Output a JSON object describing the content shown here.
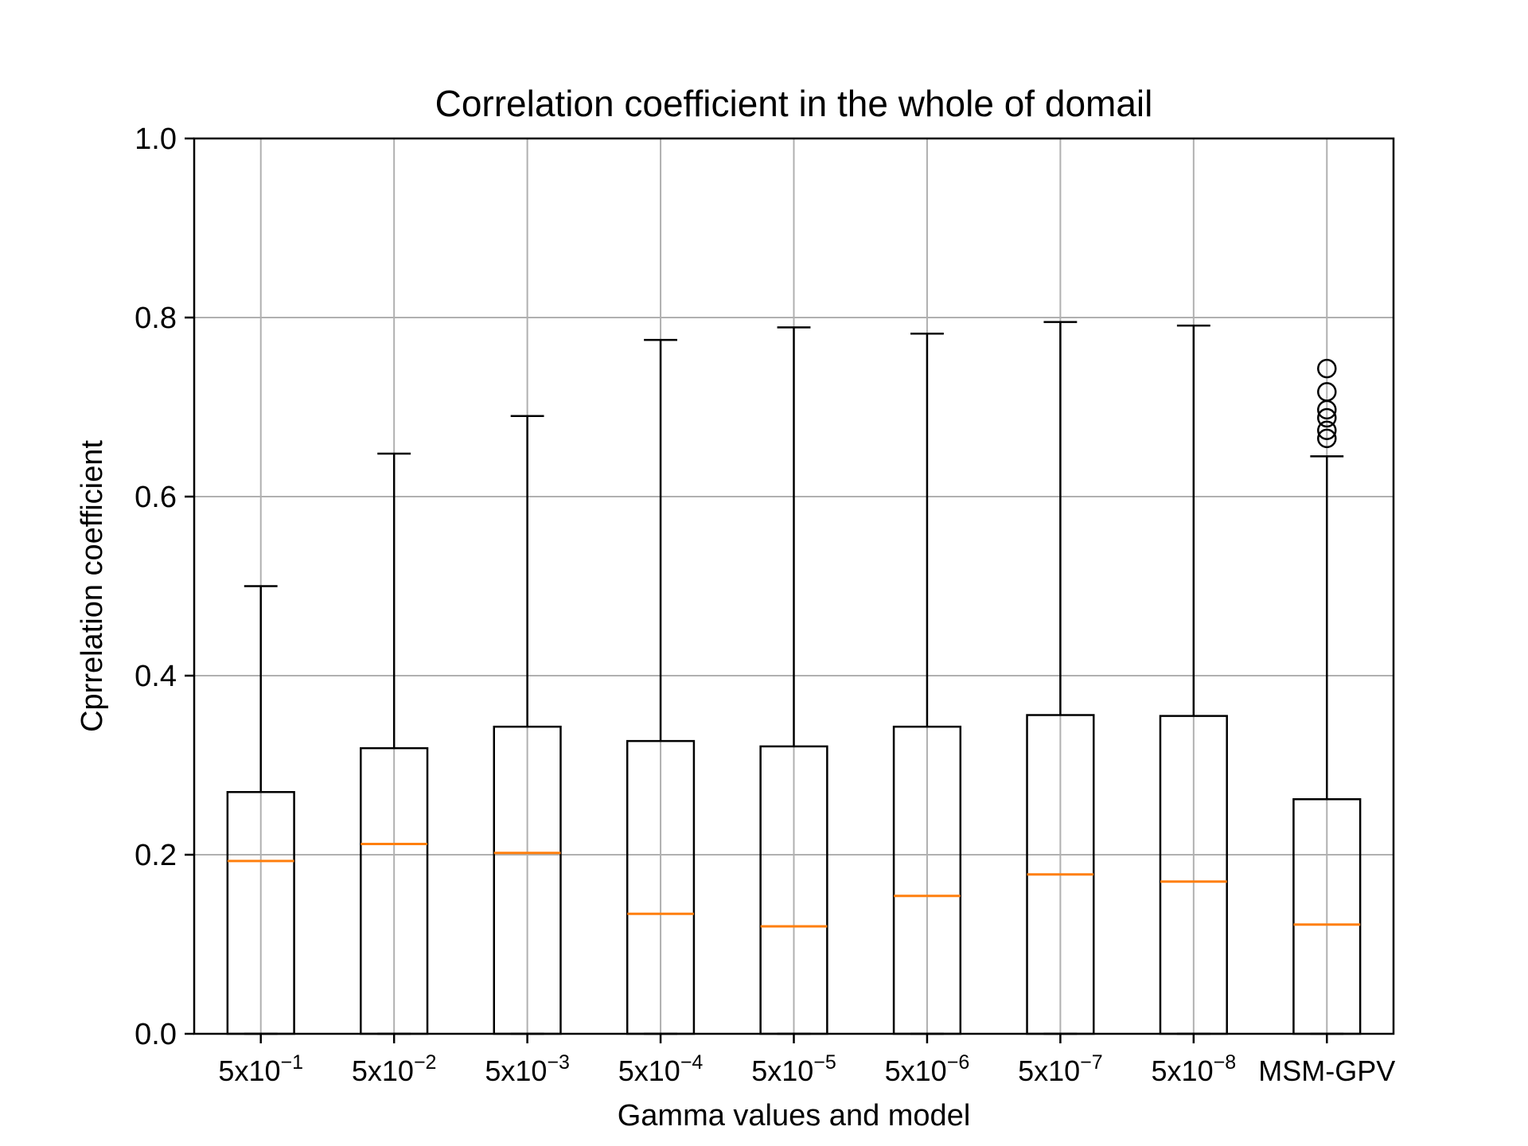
{
  "chart_data": {
    "type": "box",
    "title": "Correlation coefficient in the whole of domail",
    "xlabel": "Gamma values and model",
    "ylabel": "Cprrelation coefficient",
    "ylim": [
      0.0,
      1.0
    ],
    "yticks": [
      "0.0",
      "0.2",
      "0.4",
      "0.6",
      "0.8",
      "1.0"
    ],
    "grid": true,
    "colors": {
      "box": "#000000",
      "median": "#ff7f0e",
      "grid": "#b0b0b0"
    },
    "categories": [
      {
        "base": "5x10",
        "exp": "−1"
      },
      {
        "base": "5x10",
        "exp": "−2"
      },
      {
        "base": "5x10",
        "exp": "−3"
      },
      {
        "base": "5x10",
        "exp": "−4"
      },
      {
        "base": "5x10",
        "exp": "−5"
      },
      {
        "base": "5x10",
        "exp": "−6"
      },
      {
        "base": "5x10",
        "exp": "−7"
      },
      {
        "base": "5x10",
        "exp": "−8"
      },
      {
        "base": "MSM-GPV",
        "exp": ""
      }
    ],
    "boxes": [
      {
        "whisker_low": 0.0,
        "q1": 0.0,
        "median": 0.193,
        "q3": 0.27,
        "whisker_high": 0.5,
        "outliers": []
      },
      {
        "whisker_low": 0.0,
        "q1": 0.0,
        "median": 0.212,
        "q3": 0.319,
        "whisker_high": 0.648,
        "outliers": []
      },
      {
        "whisker_low": 0.0,
        "q1": 0.0,
        "median": 0.202,
        "q3": 0.343,
        "whisker_high": 0.69,
        "outliers": []
      },
      {
        "whisker_low": 0.0,
        "q1": 0.0,
        "median": 0.134,
        "q3": 0.327,
        "whisker_high": 0.775,
        "outliers": []
      },
      {
        "whisker_low": 0.0,
        "q1": 0.0,
        "median": 0.12,
        "q3": 0.321,
        "whisker_high": 0.789,
        "outliers": []
      },
      {
        "whisker_low": 0.0,
        "q1": 0.0,
        "median": 0.154,
        "q3": 0.343,
        "whisker_high": 0.782,
        "outliers": []
      },
      {
        "whisker_low": 0.0,
        "q1": 0.0,
        "median": 0.178,
        "q3": 0.356,
        "whisker_high": 0.795,
        "outliers": []
      },
      {
        "whisker_low": 0.0,
        "q1": 0.0,
        "median": 0.17,
        "q3": 0.355,
        "whisker_high": 0.791,
        "outliers": []
      },
      {
        "whisker_low": 0.0,
        "q1": 0.0,
        "median": 0.122,
        "q3": 0.262,
        "whisker_high": 0.645,
        "outliers": [
          0.743,
          0.717,
          0.697,
          0.688,
          0.674,
          0.665
        ]
      }
    ]
  }
}
